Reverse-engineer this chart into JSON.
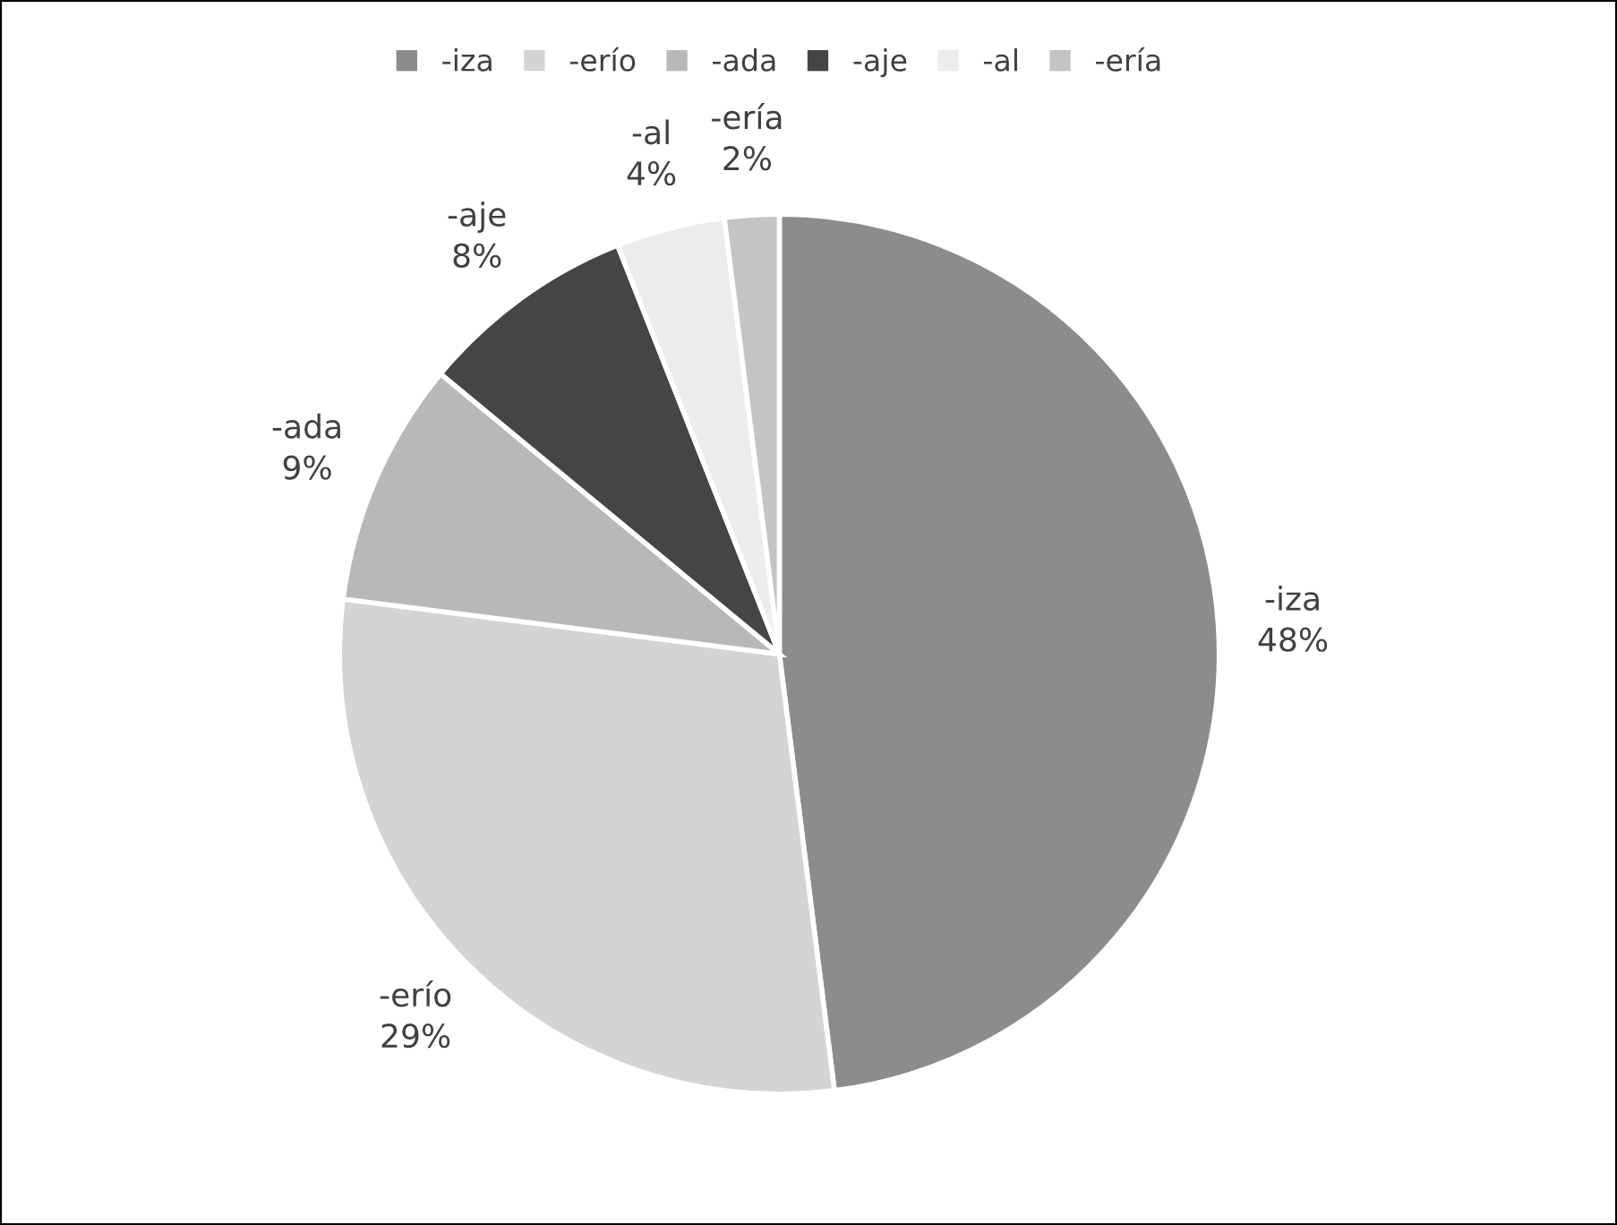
{
  "chart_data": {
    "type": "pie",
    "categories": [
      "-iza",
      "-erío",
      "-ada",
      "-aje",
      "-al",
      "-ería"
    ],
    "values": [
      48,
      29,
      9,
      8,
      4,
      2
    ],
    "value_labels": [
      "48%",
      "29%",
      "9%",
      "8%",
      "4%",
      "2%"
    ],
    "colors": [
      "#8c8c8c",
      "#d4d4d4",
      "#b8b8b8",
      "#454545",
      "#ececec",
      "#c4c4c4"
    ],
    "legend": "top"
  }
}
